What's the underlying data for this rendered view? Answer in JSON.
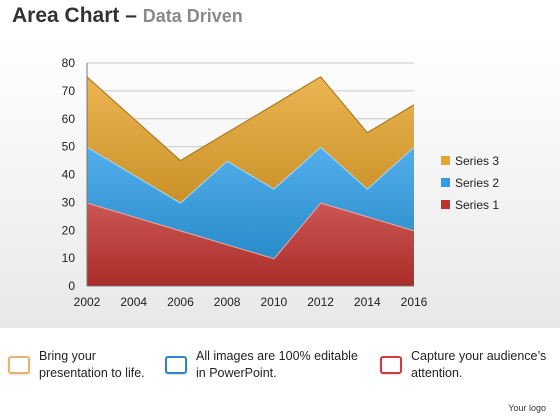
{
  "header": {
    "title_main": "Area Chart",
    "title_sep": " – ",
    "title_sub": "Data Driven"
  },
  "chart_data": {
    "type": "area",
    "stacked": true,
    "x": [
      2002,
      2007,
      2008,
      2010,
      2012,
      2016
    ],
    "xticks": [
      2002,
      2004,
      2006,
      2008,
      2010,
      2012,
      2014,
      2016
    ],
    "xlim": [
      2002,
      2016
    ],
    "yticks": [
      0,
      10,
      20,
      30,
      40,
      50,
      60,
      70,
      80
    ],
    "ylim": [
      0,
      80
    ],
    "grid": "horizontal",
    "legend_position": "right",
    "series": [
      {
        "name": "Series 1",
        "color": "#c0322e",
        "points": [
          [
            2002,
            30
          ],
          [
            2010,
            10
          ],
          [
            2012,
            30
          ],
          [
            2016,
            20
          ]
        ]
      },
      {
        "name": "Series 2",
        "color": "#2d9ee6",
        "points": [
          [
            2002,
            20
          ],
          [
            2006,
            10
          ],
          [
            2008,
            30
          ],
          [
            2010,
            25
          ],
          [
            2012,
            20
          ],
          [
            2014,
            10
          ],
          [
            2016,
            30
          ]
        ]
      },
      {
        "name": "Series 3",
        "color": "#e6a52c",
        "points": [
          [
            2002,
            25
          ],
          [
            2006,
            15
          ],
          [
            2008,
            10
          ],
          [
            2010,
            30
          ],
          [
            2012,
            25
          ],
          [
            2014,
            20
          ],
          [
            2016,
            15
          ]
        ]
      }
    ]
  },
  "callouts": [
    {
      "text": "Bring your\npresentation to life.",
      "color": "#e6b56b"
    },
    {
      "text": "All images are 100% editable\nin PowerPoint.",
      "color": "#2e86c9"
    },
    {
      "text": "Capture your audience’s\nattention.",
      "color": "#d33b3b"
    }
  ],
  "footer": {
    "logo_text": "Your logo"
  }
}
